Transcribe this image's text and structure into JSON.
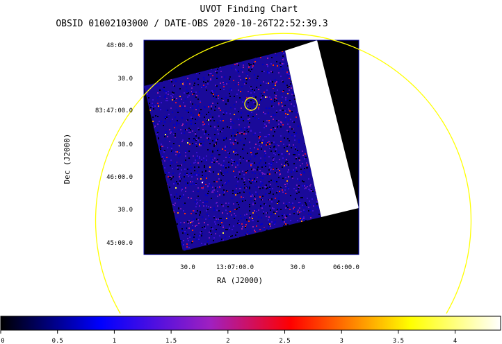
{
  "chart_data": {
    "type": "heatmap",
    "title": "UVOT Finding Chart",
    "subtitle": "OBSID 01002103000 / DATE-OBS 2020-10-26T22:52:39.3",
    "xlabel": "RA (J2000)",
    "ylabel": "Dec (J2000)",
    "x_tick_labels": [
      "30.0",
      "13:07:00.0",
      "30.0",
      "06:00.0"
    ],
    "y_tick_labels": [
      "48:00.0",
      "30.0",
      "83:47:00.0",
      "30.0",
      "46:00.0",
      "30.0",
      "45:00.0"
    ],
    "colorbar": {
      "min": 0,
      "max": 4.4,
      "ticks": [
        0,
        0.5,
        1,
        1.5,
        2,
        2.5,
        3,
        3.5,
        4
      ],
      "tick_labels": [
        "0",
        "0.5",
        "1",
        "1.5",
        "2",
        "2.5",
        "3",
        "3.5",
        "4"
      ],
      "colormap": [
        "#000000",
        "#0000ff",
        "#a020c0",
        "#ff0000",
        "#ffff00",
        "#ffffff"
      ]
    },
    "grid": false
  },
  "colors": {
    "overlay_circle": "#ffff00",
    "frame": "#0000a0",
    "exposure_gap": "#ffffff",
    "background": "#000000"
  }
}
